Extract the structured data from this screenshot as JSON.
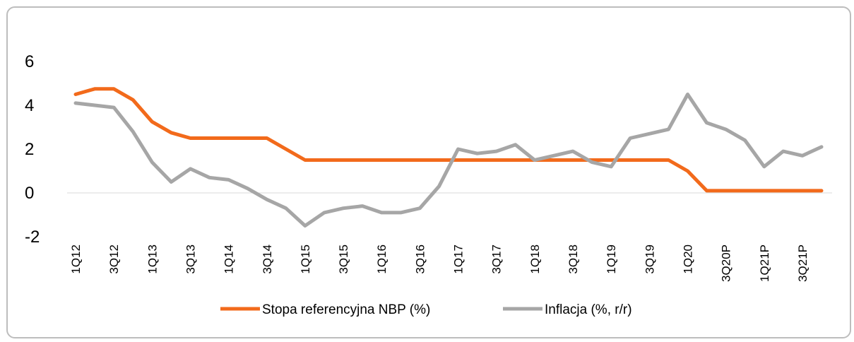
{
  "chart_data": {
    "type": "line",
    "categories": [
      "1Q12",
      null,
      "3Q12",
      null,
      "1Q13",
      null,
      "3Q13",
      null,
      "1Q14",
      null,
      "3Q14",
      null,
      "1Q15",
      null,
      "3Q15",
      null,
      "1Q16",
      null,
      "3Q16",
      null,
      "1Q17",
      null,
      "3Q17",
      null,
      "1Q18",
      null,
      "3Q18",
      null,
      "1Q19",
      null,
      "3Q19",
      null,
      "1Q20",
      null,
      "3Q20P",
      null,
      "1Q21P",
      null,
      "3Q21P",
      null
    ],
    "series": [
      {
        "name": "Stopa referencyjna NBP (%)",
        "color": "#f26a1b",
        "values": [
          4.5,
          4.75,
          4.75,
          4.25,
          3.25,
          2.75,
          2.5,
          2.5,
          2.5,
          2.5,
          2.5,
          2.0,
          1.5,
          1.5,
          1.5,
          1.5,
          1.5,
          1.5,
          1.5,
          1.5,
          1.5,
          1.5,
          1.5,
          1.5,
          1.5,
          1.5,
          1.5,
          1.5,
          1.5,
          1.5,
          1.5,
          1.5,
          1.0,
          0.1,
          0.1,
          0.1,
          0.1,
          0.1,
          0.1,
          0.1
        ]
      },
      {
        "name": "Inflacja (%, r/r)",
        "color": "#a6a6a6",
        "values": [
          4.1,
          4.0,
          3.9,
          2.8,
          1.4,
          0.5,
          1.1,
          0.7,
          0.6,
          0.2,
          -0.3,
          -0.7,
          -1.5,
          -0.9,
          -0.7,
          -0.6,
          -0.9,
          -0.9,
          -0.7,
          0.3,
          2.0,
          1.8,
          1.9,
          2.2,
          1.5,
          1.7,
          1.9,
          1.4,
          1.2,
          2.5,
          2.7,
          2.9,
          4.5,
          3.2,
          2.9,
          2.4,
          1.2,
          1.9,
          1.7,
          2.1
        ]
      }
    ],
    "ylim": [
      -2,
      6
    ],
    "yticks": [
      -2,
      0,
      2,
      4,
      6
    ],
    "grid": false
  }
}
